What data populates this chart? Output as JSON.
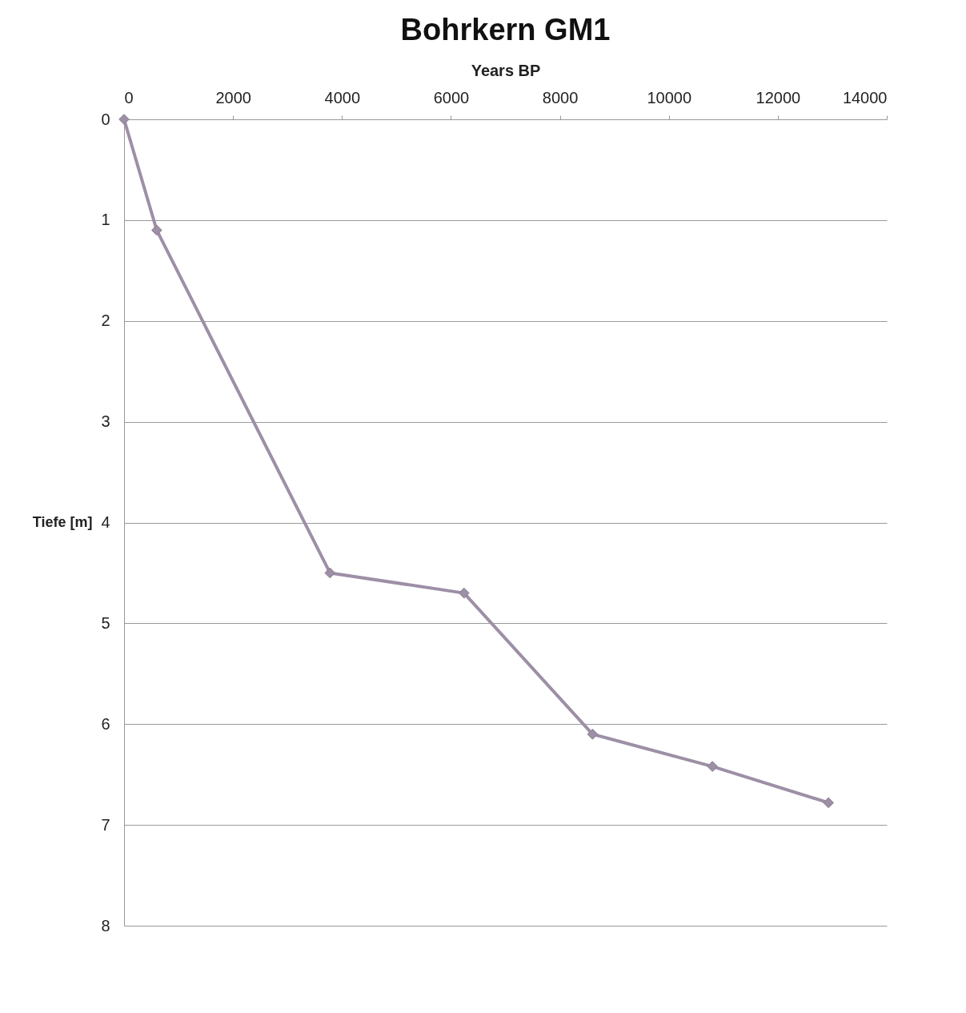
{
  "chart_data": {
    "type": "line",
    "title": "Bohrkern GM1",
    "xlabel": "Years BP",
    "ylabel": "Tiefe [m]",
    "x": [
      0,
      600,
      3780,
      6240,
      8600,
      10800,
      12930
    ],
    "series": [
      {
        "color": "#9d8fa6",
        "values": [
          0,
          1.1,
          4.5,
          4.7,
          6.1,
          6.42,
          6.78
        ]
      }
    ],
    "xlim": [
      0,
      14000
    ],
    "xticks": [
      0,
      2000,
      4000,
      6000,
      8000,
      10000,
      12000,
      14000
    ],
    "ylim": [
      8,
      0
    ],
    "yticks": [
      0,
      1,
      2,
      3,
      4,
      5,
      6,
      7,
      8
    ],
    "grid": "y",
    "marker": "diamond",
    "line_style": "solid"
  }
}
